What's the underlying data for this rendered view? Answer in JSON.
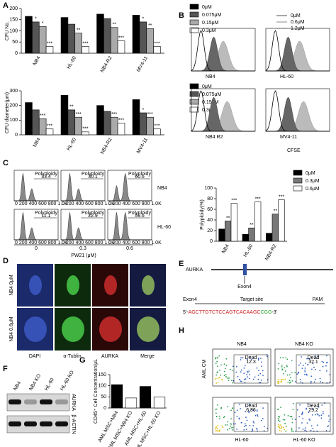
{
  "chart_data": [
    {
      "type": "bar",
      "y_label": "CFU No.",
      "categories": [
        "NB4",
        "HL-60",
        "NB4-R2",
        "MV4-11"
      ],
      "ylim": [
        0,
        200
      ],
      "yticks": [
        0,
        50,
        100,
        150,
        200
      ],
      "series": [
        {
          "name": "0μM",
          "color": "#000000",
          "values": [
            165,
            160,
            175,
            170
          ],
          "annotations": [
            null,
            null,
            null,
            null
          ]
        },
        {
          "name": "0.075μM",
          "color": "#555555",
          "values": [
            140,
            130,
            155,
            140
          ],
          "annotations": [
            "*",
            null,
            null,
            "*"
          ]
        },
        {
          "name": "0.15μM",
          "color": "#aaaaaa",
          "values": [
            120,
            90,
            115,
            110
          ],
          "annotations": [
            "*",
            "**",
            "**",
            "**"
          ]
        },
        {
          "name": "0.3μM",
          "color": "#ffffff",
          "values": [
            30,
            30,
            55,
            30
          ],
          "annotations": [
            "***",
            "***",
            "***",
            "***"
          ]
        }
      ]
    },
    {
      "type": "bar",
      "y_label": "CFU diameter(μm)",
      "categories": [
        "NB4",
        "HL-60",
        "NB4-R2",
        "MV4-11"
      ],
      "ylim": [
        0,
        300
      ],
      "yticks": [
        0,
        100,
        200,
        300
      ],
      "series": [
        {
          "name": "0μM",
          "color": "#000000",
          "values": [
            220,
            270,
            200,
            240
          ],
          "annotations": [
            null,
            null,
            null,
            null
          ]
        },
        {
          "name": "0.075μM",
          "color": "#555555",
          "values": [
            170,
            170,
            160,
            150
          ],
          "annotations": [
            null,
            "**",
            null,
            "*"
          ]
        },
        {
          "name": "0.15μM",
          "color": "#aaaaaa",
          "values": [
            110,
            120,
            120,
            120
          ],
          "annotations": [
            "***",
            "***",
            "***",
            "***"
          ]
        },
        {
          "name": "0.3μM",
          "color": "#ffffff",
          "values": [
            40,
            20,
            80,
            40
          ],
          "annotations": [
            "***",
            "***",
            "***",
            "***"
          ]
        }
      ]
    },
    {
      "type": "bar",
      "y_label": "Polyploidy(%)",
      "categories": [
        "NB4",
        "HL-60",
        "NB4-R2"
      ],
      "ylim": [
        0,
        100
      ],
      "yticks": [
        0,
        20,
        40,
        60,
        80,
        100
      ],
      "series": [
        {
          "name": "0μM",
          "color": "#000000",
          "values": [
            23,
            13,
            15
          ],
          "annotations": [
            null,
            null,
            null
          ]
        },
        {
          "name": "0.3μM",
          "color": "#777777",
          "values": [
            38,
            25,
            51
          ],
          "annotations": [
            "**",
            "**",
            "**"
          ]
        },
        {
          "name": "0.6μM",
          "color": "#ffffff",
          "values": [
            71,
            74,
            78
          ],
          "annotations": [
            "***",
            "***",
            "***"
          ]
        }
      ]
    },
    {
      "type": "bar",
      "y_label": "CD45⁺ Cell Concentration/μL",
      "categories": [
        "AML MSC+NB4",
        "AML MSC+NB4 KO",
        "AML MSC+HL-60",
        "AML MSC+HL-60 KO"
      ],
      "ylim": [
        0,
        150
      ],
      "yticks": [
        0,
        50,
        100,
        150
      ],
      "values": [
        105,
        45,
        97,
        50
      ],
      "colors": [
        "#000000",
        "#ffffff",
        "#000000",
        "#ffffff"
      ]
    }
  ],
  "panel_labels": [
    "A",
    "B",
    "C",
    "D",
    "E",
    "F",
    "G",
    "H"
  ],
  "panel_b": {
    "legend": [
      "0μM",
      "0.6μM",
      "1.2μM"
    ],
    "plots": [
      "NB4",
      "HL-60",
      "NB4 R2",
      "MV4-11"
    ],
    "x_label": "CFSE"
  },
  "panel_c": {
    "rows": [
      "NB4",
      "HL-60"
    ],
    "columns": [
      "0",
      "0.3",
      "0.6"
    ],
    "x_label": "PW21 (μM)",
    "x_ticks": "0  200 400 600 800 1.0K",
    "gate_label": "Polyploidy",
    "gate_values": [
      [
        "33.4",
        "30.1",
        "60.6"
      ],
      [
        "11.1",
        "22.9",
        "59.6"
      ]
    ]
  },
  "panel_d": {
    "rows": [
      "NB4 0μM",
      "NB4 0.6μM"
    ],
    "columns": [
      "DAPI",
      "α-Tublin",
      "AURKA",
      "Merge"
    ]
  },
  "panel_e": {
    "gene": "AURKA",
    "exon_marker": "Exon4",
    "exon_label": "Exon4",
    "target_label": "Target site",
    "pam_label": "PAM",
    "prefix": "5'-",
    "target_seq": "AGCTTGTCTCCAGTCACAAGC",
    "pam_seq": "CGG",
    "suffix": "-3'"
  },
  "panel_f": {
    "lanes": [
      "NB4",
      "NB4 KO",
      "HL-60",
      "HL-60 KO"
    ],
    "bands": [
      "AURKA",
      "β-ACTIN"
    ]
  },
  "panel_h": {
    "columns": [
      "NB4",
      "NB4 KO"
    ],
    "row_label": "AML CM",
    "bottom_labels": [
      "HL-60",
      "HL-60 KO"
    ],
    "gate_label": "Dead",
    "gate_values": [
      "12.3",
      "32.1",
      "6.86",
      "29.2"
    ]
  }
}
